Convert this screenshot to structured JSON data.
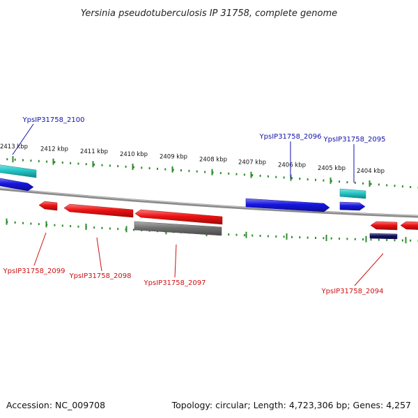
{
  "title": "Yersinia pseudotuberculosis IP 31758, complete genome",
  "footer": {
    "accession": "Accession: NC_009708",
    "summary": "Topology: circular; Length: 4,723,306 bp; Genes: 4,257"
  },
  "colors": {
    "backbone": "#8a8a8a",
    "tick": "#2e8b2e",
    "forward_label": "#1010aa",
    "reverse_label": "#cc1010",
    "gene_red": "#ee1111",
    "gene_blue": "#1515e0",
    "gene_cyan": "#22c8c8",
    "gene_grey": "#707070",
    "gene_navy": "#101060"
  },
  "scale": {
    "kbp_labels": [
      "2413 kbp",
      "2412 kbp",
      "2411 kbp",
      "2410 kbp",
      "2409 kbp",
      "2408 kbp",
      "2407 kbp",
      "2406 kbp",
      "2405 kbp",
      "2404 kbp"
    ]
  },
  "gene_labels": [
    {
      "text": "YpsIP31758_2100",
      "strand": "forward"
    },
    {
      "text": "YpsIP31758_2096",
      "strand": "forward"
    },
    {
      "text": "YpsIP31758_2095",
      "strand": "forward"
    },
    {
      "text": "YpsIP31758_2099",
      "strand": "reverse"
    },
    {
      "text": "YpsIP31758_2098",
      "strand": "reverse"
    },
    {
      "text": "YpsIP31758_2097",
      "strand": "reverse"
    },
    {
      "text": "YpsIP31758_2094",
      "strand": "reverse"
    }
  ],
  "genes": [
    {
      "type": "cyan",
      "strand": "forward"
    },
    {
      "type": "blue",
      "strand": "forward"
    },
    {
      "type": "blue",
      "strand": "forward"
    },
    {
      "type": "cyan",
      "strand": "forward"
    },
    {
      "type": "blue",
      "strand": "forward"
    },
    {
      "type": "red",
      "strand": "reverse"
    },
    {
      "type": "red",
      "strand": "reverse"
    },
    {
      "type": "red",
      "strand": "reverse"
    },
    {
      "type": "grey",
      "strand": "reverse"
    },
    {
      "type": "red",
      "strand": "reverse"
    },
    {
      "type": "navy",
      "strand": "reverse"
    },
    {
      "type": "red",
      "strand": "reverse"
    }
  ]
}
